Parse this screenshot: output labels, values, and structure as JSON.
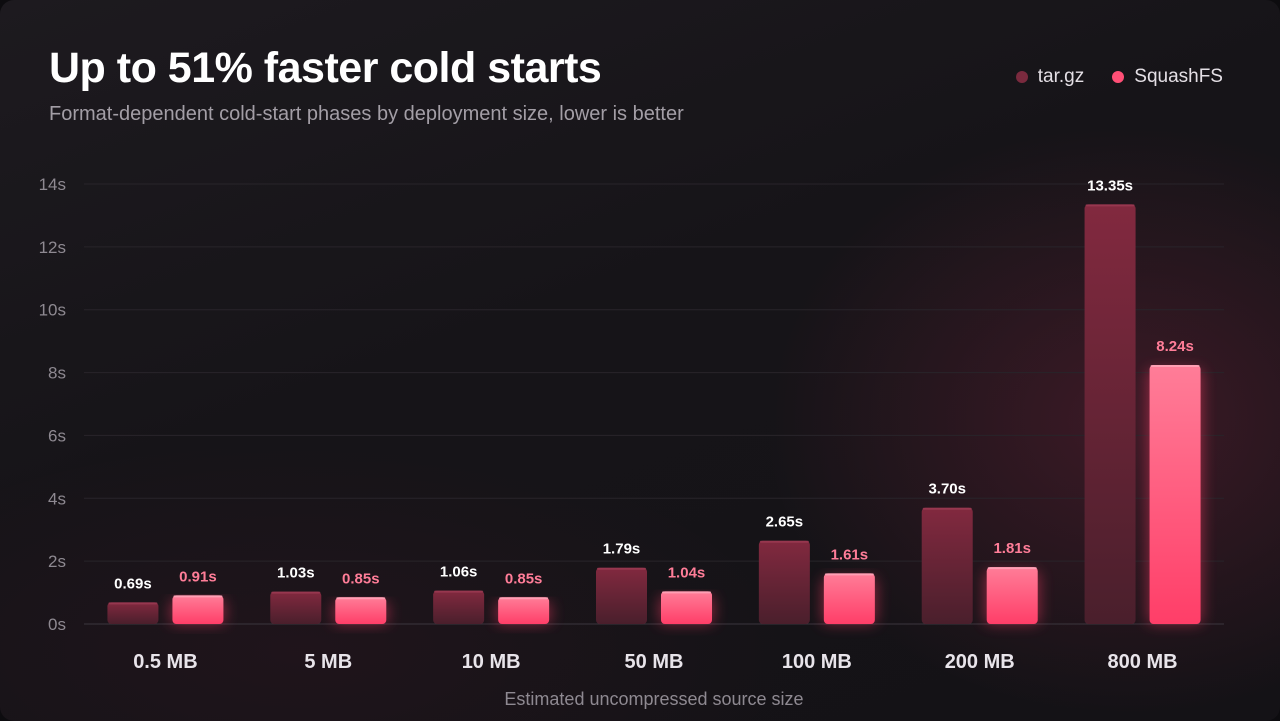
{
  "header": {
    "title": "Up to 51% faster cold starts",
    "subtitle": "Format-dependent cold-start phases by deployment size, lower is better"
  },
  "colors": {
    "targz": "#7a2a3e",
    "squashfs": "#ff4f76",
    "squashfs_label": "#ff7d98",
    "targz_label": "#ffffff"
  },
  "chart_data": {
    "type": "bar",
    "title": "Up to 51% faster cold starts",
    "subtitle": "Format-dependent cold-start phases by deployment size, lower is better",
    "xlabel": "Estimated uncompressed source size",
    "ylabel": "",
    "categories": [
      "0.5 MB",
      "5 MB",
      "10 MB",
      "50 MB",
      "100 MB",
      "200 MB",
      "800 MB"
    ],
    "series": [
      {
        "name": "tar.gz",
        "values": [
          0.69,
          1.03,
          1.06,
          1.79,
          2.65,
          3.7,
          13.35
        ],
        "labels": [
          "0.69s",
          "1.03s",
          "1.06s",
          "1.79s",
          "2.65s",
          "3.70s",
          "13.35s"
        ]
      },
      {
        "name": "SquashFS",
        "values": [
          0.91,
          0.85,
          0.85,
          1.04,
          1.61,
          1.81,
          8.24
        ],
        "labels": [
          "0.91s",
          "0.85s",
          "0.85s",
          "1.04s",
          "1.61s",
          "1.81s",
          "8.24s"
        ]
      }
    ],
    "ylim": [
      0,
      14
    ],
    "yticks": [
      0,
      2,
      4,
      6,
      8,
      10,
      12,
      14
    ],
    "ytick_labels": [
      "0s",
      "2s",
      "4s",
      "6s",
      "8s",
      "10s",
      "12s",
      "14s"
    ],
    "grid": true,
    "legend": "top-right"
  }
}
